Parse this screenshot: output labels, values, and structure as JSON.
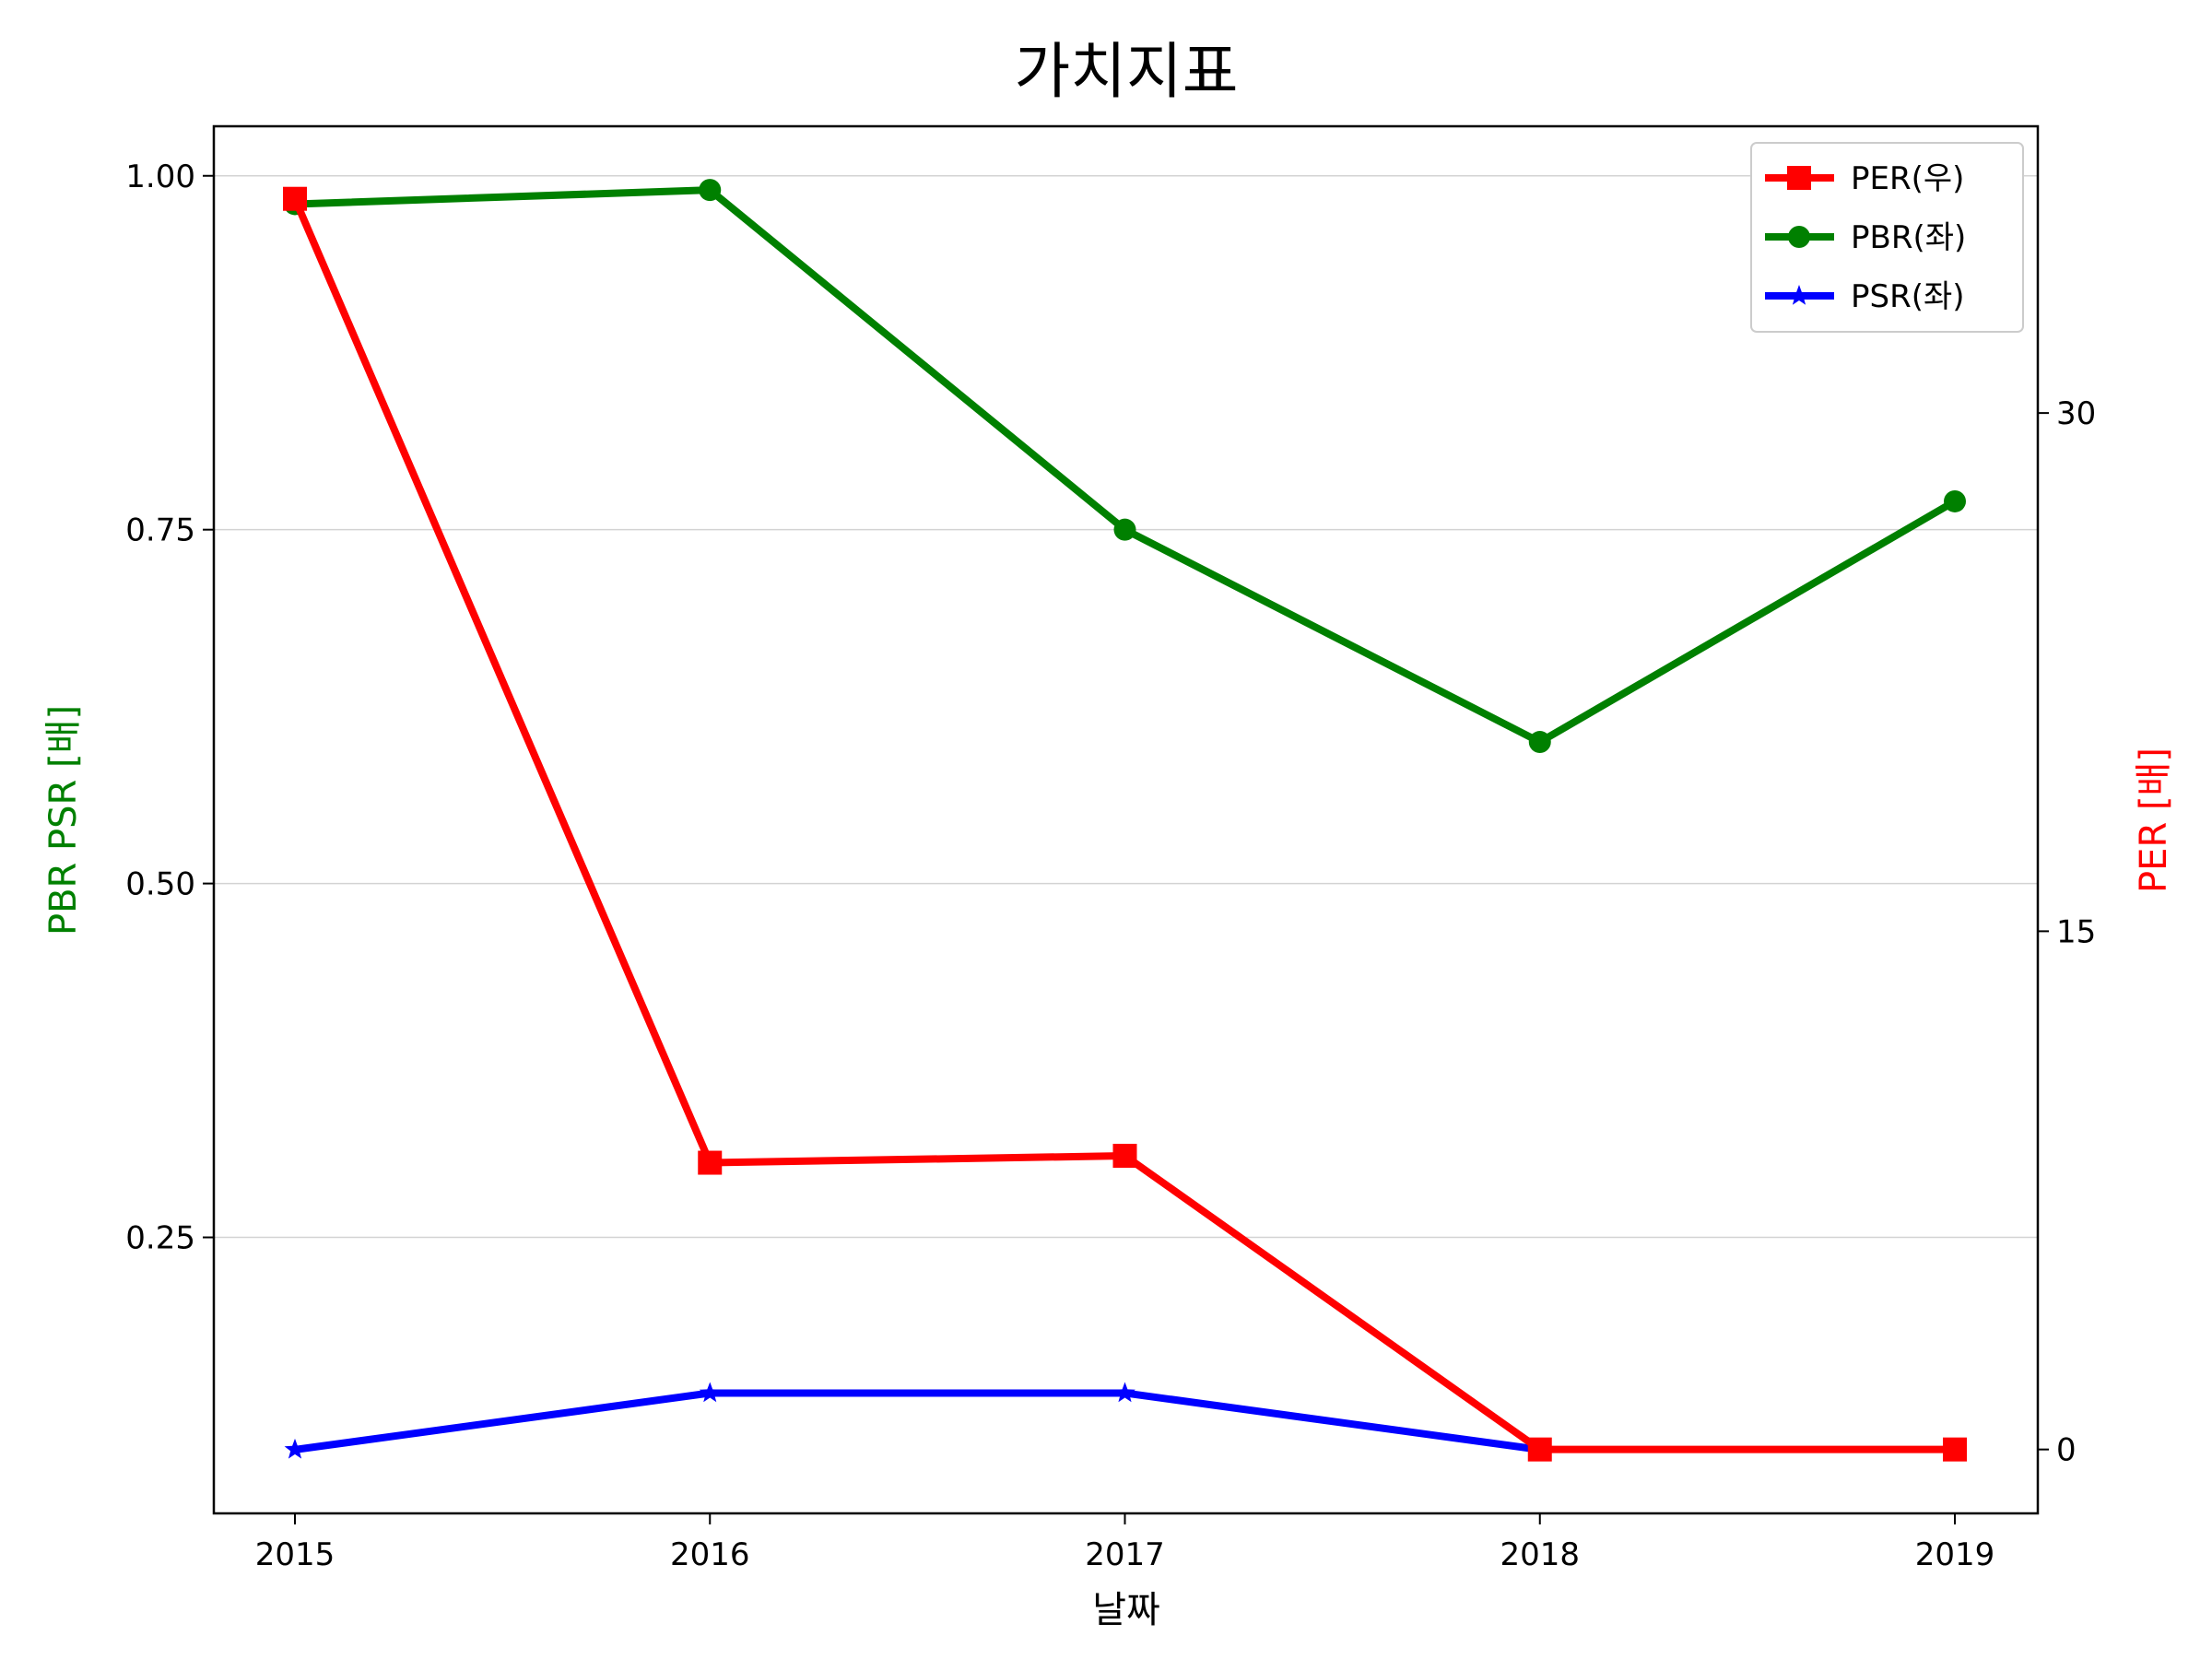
{
  "chart_data": {
    "type": "line",
    "title": "가치지표",
    "xlabel": "날짜",
    "ylabel_left": "PBR PSR [배]",
    "ylabel_right": "PER [배]",
    "categories": [
      "2015",
      "2016",
      "2017",
      "2018",
      "2019"
    ],
    "y_left": {
      "ticks": [
        "0.25",
        "0.50",
        "0.75",
        "1.00"
      ],
      "lim": [
        0.055,
        1.035
      ]
    },
    "y_right": {
      "ticks": [
        "0",
        "15",
        "30"
      ],
      "lim": [
        -1.85,
        38.3
      ]
    },
    "grid": "y-left",
    "legend_placement": "top-right",
    "series": [
      {
        "name": "PER(우)",
        "axis": "right",
        "marker": "square",
        "color": "#ff0000",
        "values": [
          36.2,
          8.3,
          8.5,
          0,
          0
        ]
      },
      {
        "name": "PBR(좌)",
        "axis": "left",
        "marker": "circle",
        "color": "#008000",
        "values": [
          0.98,
          0.99,
          0.75,
          0.6,
          0.77
        ]
      },
      {
        "name": "PSR(좌)",
        "axis": "left",
        "marker": "star",
        "color": "#0000ff",
        "values": [
          0.1,
          0.14,
          0.14,
          0.1,
          null
        ]
      }
    ]
  }
}
